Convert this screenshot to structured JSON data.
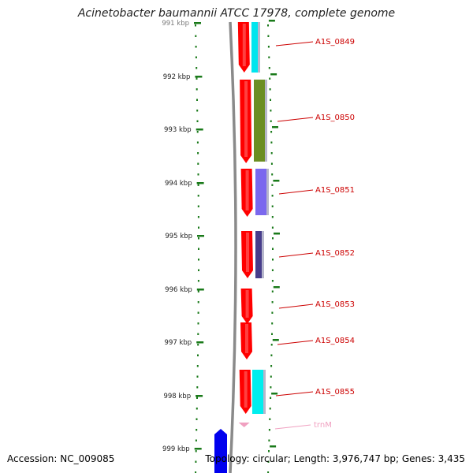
{
  "title": "Acinetobacter baumannii ATCC 17978, complete genome",
  "footer": {
    "accession": "Accession: NC_009085",
    "summary": "Topology: circular; Length: 3,976,747 bp; Genes: 3,435"
  },
  "scale": {
    "unit": "kbp",
    "ticks": [
      "991 kbp",
      "992 kbp",
      "993 kbp",
      "994 kbp",
      "995 kbp",
      "996 kbp",
      "997 kbp",
      "998 kbp",
      "999 kbp"
    ]
  },
  "colors": {
    "backbone": "#8a8a8a",
    "forward_strand": "#ff0000",
    "label_line": "#cc0000",
    "trna": "#f0a0c0",
    "tick": "#1a7a1a",
    "other_gene": "#0000ee"
  },
  "genes": [
    {
      "label": "A1S_0849",
      "cog_color": "#00e5ee"
    },
    {
      "label": "A1S_0850",
      "cog_color": "#6b8e23"
    },
    {
      "label": "A1S_0851",
      "cog_color": "#7b68ee"
    },
    {
      "label": "A1S_0852",
      "cog_color": "#483d8b"
    },
    {
      "label": "A1S_0853",
      "cog_color": ""
    },
    {
      "label": "A1S_0854",
      "cog_color": ""
    },
    {
      "label": "A1S_0855",
      "cog_color": "#00eeee"
    },
    {
      "label": "trnM",
      "cog_color": ""
    }
  ]
}
